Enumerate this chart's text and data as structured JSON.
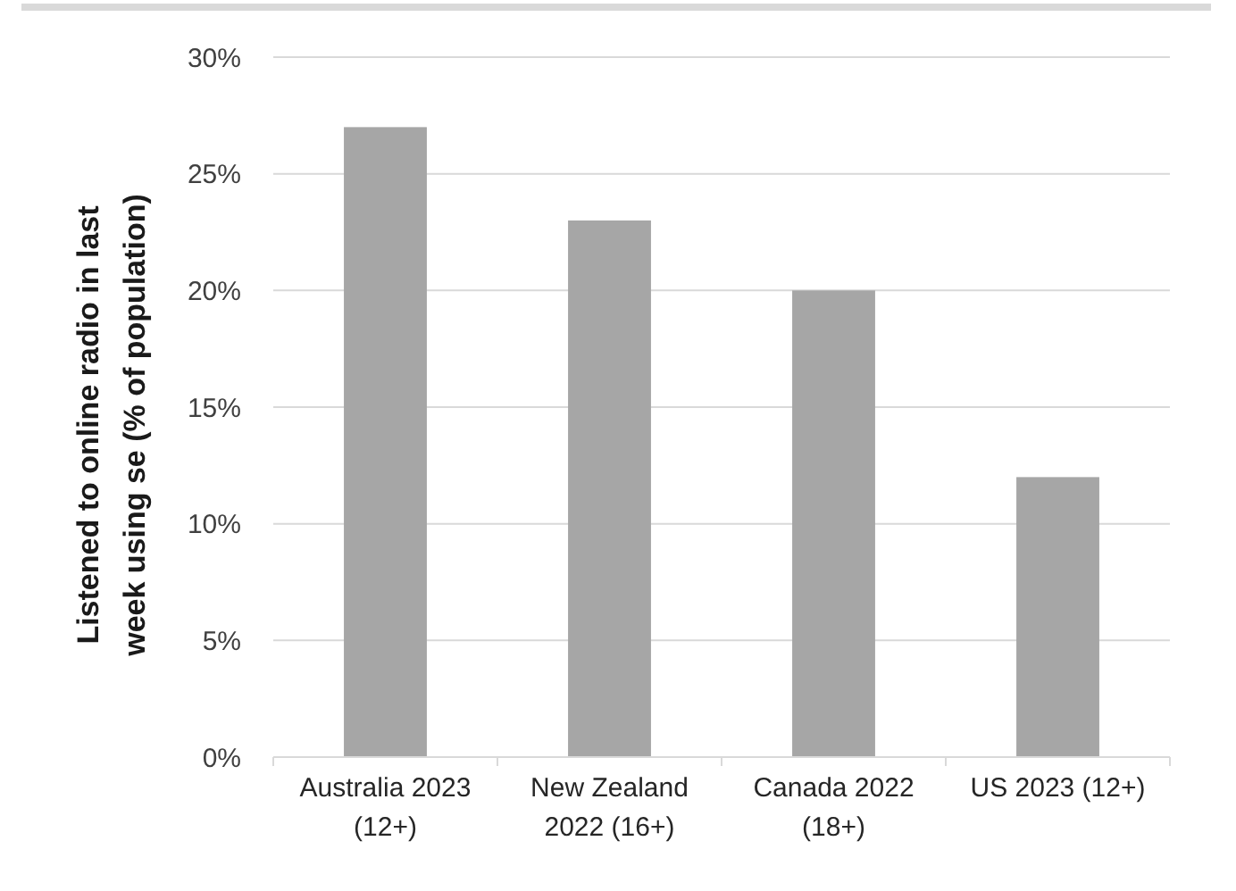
{
  "chart_data": {
    "type": "bar",
    "ylabel": "Listened to online radio in last week using se (% of population)",
    "categories": [
      "Australia 2023 (12+)",
      "New Zealand 2022 (16+)",
      "Canada 2022 (18+)",
      "US 2023 (12+)"
    ],
    "values": [
      27,
      23,
      20,
      12
    ],
    "color": "#a6a6a6",
    "ylim": [
      0,
      30
    ],
    "yticks": [
      {
        "value": 0,
        "label": "0%"
      },
      {
        "value": 5,
        "label": "5%"
      },
      {
        "value": 10,
        "label": "10%"
      },
      {
        "value": 15,
        "label": "15%"
      },
      {
        "value": 20,
        "label": "20%"
      },
      {
        "value": 25,
        "label": "25%"
      },
      {
        "value": 30,
        "label": "30%"
      }
    ],
    "grid": "y"
  }
}
